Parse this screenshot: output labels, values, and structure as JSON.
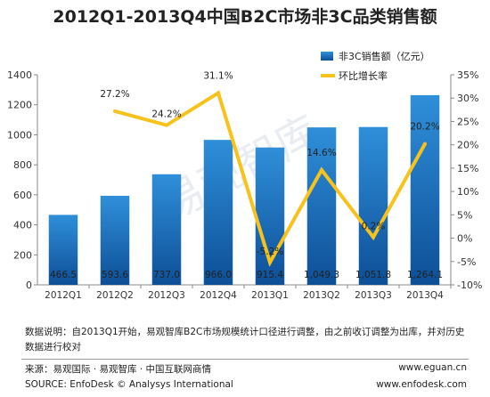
{
  "title": "2012Q1-2013Q4中国B2C市场非3C品类销售额",
  "chart_data": {
    "type": "bar",
    "categories": [
      "2012Q1",
      "2012Q2",
      "2012Q3",
      "2012Q4",
      "2013Q1",
      "2013Q2",
      "2013Q3",
      "2013Q4"
    ],
    "series": [
      {
        "name": "非3C销售额（亿元）",
        "type": "bar",
        "axis": "left",
        "values": [
          466.5,
          593.6,
          737.0,
          966.0,
          915.4,
          1049.3,
          1051.8,
          1264.1
        ],
        "labels": [
          "466.5",
          "593.6",
          "737.0",
          "966.0",
          "915.4",
          "1,049.3",
          "1,051.8",
          "1,264.1"
        ]
      },
      {
        "name": "环比增长率",
        "type": "line",
        "axis": "right",
        "values": [
          null,
          27.2,
          24.2,
          31.1,
          -5.2,
          14.6,
          0.2,
          20.2
        ],
        "labels": [
          "",
          "27.2%",
          "24.2%",
          "31.1%",
          "-5.2%",
          "14.6%",
          "0.2%",
          "20.2%"
        ]
      }
    ],
    "y_left": {
      "min": 0,
      "max": 1400,
      "step": 200,
      "ticks": [
        "0",
        "200",
        "400",
        "600",
        "800",
        "1000",
        "1200",
        "1400"
      ]
    },
    "y_right": {
      "min": -10,
      "max": 35,
      "step": 5,
      "ticks": [
        "-10%",
        "-5%",
        "0%",
        "5%",
        "10%",
        "15%",
        "20%",
        "25%",
        "30%",
        "35%"
      ]
    },
    "legend_position": "top-right",
    "colors": {
      "bar_top": "#2f8fd9",
      "bar_bottom": "#0d4f97",
      "line": "#f7c21b"
    }
  },
  "watermark": "易观智库",
  "note": "数据说明：自2013Q1开始，易观智库B2C市场规模统计口径进行调整，由之前收订调整为出库，并对历史数据进行校对",
  "source": {
    "line1_left": "来源：易观国际 · 易观智库 · 中国互联网商情",
    "line1_right": "www.eguan.cn",
    "line2_left": "SOURCE: EnfoDesk © Analysys International",
    "line2_right": "www.enfodesk.com"
  }
}
